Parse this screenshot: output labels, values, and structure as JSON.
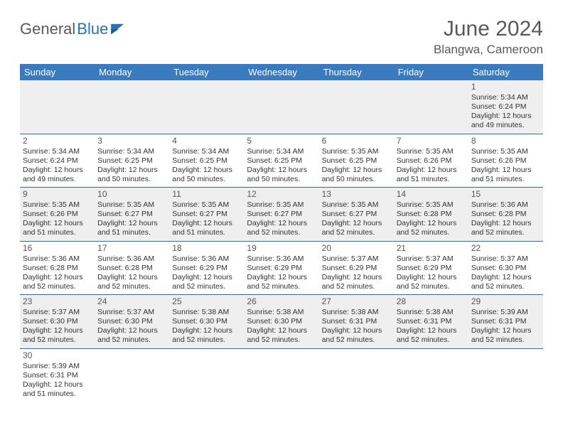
{
  "brand": {
    "part1": "General",
    "part2": "Blue",
    "icon_color": "#2a6fb5"
  },
  "title": "June 2024",
  "location": "Blangwa, Cameroon",
  "colors": {
    "header_bg": "#3a7bbf",
    "header_text": "#ffffff",
    "row_shade": "#efefef",
    "rule": "#2a6fb5",
    "title_color": "#595959"
  },
  "weekdays": [
    "Sunday",
    "Monday",
    "Tuesday",
    "Wednesday",
    "Thursday",
    "Friday",
    "Saturday"
  ],
  "weeks": [
    [
      null,
      null,
      null,
      null,
      null,
      null,
      {
        "n": "1",
        "sr": "5:34 AM",
        "ss": "6:24 PM",
        "dl1": "12 hours",
        "dl2": "and 49 minutes."
      }
    ],
    [
      {
        "n": "2",
        "sr": "5:34 AM",
        "ss": "6:24 PM",
        "dl1": "12 hours",
        "dl2": "and 49 minutes."
      },
      {
        "n": "3",
        "sr": "5:34 AM",
        "ss": "6:25 PM",
        "dl1": "12 hours",
        "dl2": "and 50 minutes."
      },
      {
        "n": "4",
        "sr": "5:34 AM",
        "ss": "6:25 PM",
        "dl1": "12 hours",
        "dl2": "and 50 minutes."
      },
      {
        "n": "5",
        "sr": "5:34 AM",
        "ss": "6:25 PM",
        "dl1": "12 hours",
        "dl2": "and 50 minutes."
      },
      {
        "n": "6",
        "sr": "5:35 AM",
        "ss": "6:25 PM",
        "dl1": "12 hours",
        "dl2": "and 50 minutes."
      },
      {
        "n": "7",
        "sr": "5:35 AM",
        "ss": "6:26 PM",
        "dl1": "12 hours",
        "dl2": "and 51 minutes."
      },
      {
        "n": "8",
        "sr": "5:35 AM",
        "ss": "6:26 PM",
        "dl1": "12 hours",
        "dl2": "and 51 minutes."
      }
    ],
    [
      {
        "n": "9",
        "sr": "5:35 AM",
        "ss": "6:26 PM",
        "dl1": "12 hours",
        "dl2": "and 51 minutes."
      },
      {
        "n": "10",
        "sr": "5:35 AM",
        "ss": "6:27 PM",
        "dl1": "12 hours",
        "dl2": "and 51 minutes."
      },
      {
        "n": "11",
        "sr": "5:35 AM",
        "ss": "6:27 PM",
        "dl1": "12 hours",
        "dl2": "and 51 minutes."
      },
      {
        "n": "12",
        "sr": "5:35 AM",
        "ss": "6:27 PM",
        "dl1": "12 hours",
        "dl2": "and 52 minutes."
      },
      {
        "n": "13",
        "sr": "5:35 AM",
        "ss": "6:27 PM",
        "dl1": "12 hours",
        "dl2": "and 52 minutes."
      },
      {
        "n": "14",
        "sr": "5:35 AM",
        "ss": "6:28 PM",
        "dl1": "12 hours",
        "dl2": "and 52 minutes."
      },
      {
        "n": "15",
        "sr": "5:36 AM",
        "ss": "6:28 PM",
        "dl1": "12 hours",
        "dl2": "and 52 minutes."
      }
    ],
    [
      {
        "n": "16",
        "sr": "5:36 AM",
        "ss": "6:28 PM",
        "dl1": "12 hours",
        "dl2": "and 52 minutes."
      },
      {
        "n": "17",
        "sr": "5:36 AM",
        "ss": "6:28 PM",
        "dl1": "12 hours",
        "dl2": "and 52 minutes."
      },
      {
        "n": "18",
        "sr": "5:36 AM",
        "ss": "6:29 PM",
        "dl1": "12 hours",
        "dl2": "and 52 minutes."
      },
      {
        "n": "19",
        "sr": "5:36 AM",
        "ss": "6:29 PM",
        "dl1": "12 hours",
        "dl2": "and 52 minutes."
      },
      {
        "n": "20",
        "sr": "5:37 AM",
        "ss": "6:29 PM",
        "dl1": "12 hours",
        "dl2": "and 52 minutes."
      },
      {
        "n": "21",
        "sr": "5:37 AM",
        "ss": "6:29 PM",
        "dl1": "12 hours",
        "dl2": "and 52 minutes."
      },
      {
        "n": "22",
        "sr": "5:37 AM",
        "ss": "6:30 PM",
        "dl1": "12 hours",
        "dl2": "and 52 minutes."
      }
    ],
    [
      {
        "n": "23",
        "sr": "5:37 AM",
        "ss": "6:30 PM",
        "dl1": "12 hours",
        "dl2": "and 52 minutes."
      },
      {
        "n": "24",
        "sr": "5:37 AM",
        "ss": "6:30 PM",
        "dl1": "12 hours",
        "dl2": "and 52 minutes."
      },
      {
        "n": "25",
        "sr": "5:38 AM",
        "ss": "6:30 PM",
        "dl1": "12 hours",
        "dl2": "and 52 minutes."
      },
      {
        "n": "26",
        "sr": "5:38 AM",
        "ss": "6:30 PM",
        "dl1": "12 hours",
        "dl2": "and 52 minutes."
      },
      {
        "n": "27",
        "sr": "5:38 AM",
        "ss": "6:31 PM",
        "dl1": "12 hours",
        "dl2": "and 52 minutes."
      },
      {
        "n": "28",
        "sr": "5:38 AM",
        "ss": "6:31 PM",
        "dl1": "12 hours",
        "dl2": "and 52 minutes."
      },
      {
        "n": "29",
        "sr": "5:39 AM",
        "ss": "6:31 PM",
        "dl1": "12 hours",
        "dl2": "and 52 minutes."
      }
    ],
    [
      {
        "n": "30",
        "sr": "5:39 AM",
        "ss": "6:31 PM",
        "dl1": "12 hours",
        "dl2": "and 51 minutes."
      },
      null,
      null,
      null,
      null,
      null,
      null
    ]
  ],
  "labels": {
    "sunrise": "Sunrise:",
    "sunset": "Sunset:",
    "daylight": "Daylight:"
  }
}
